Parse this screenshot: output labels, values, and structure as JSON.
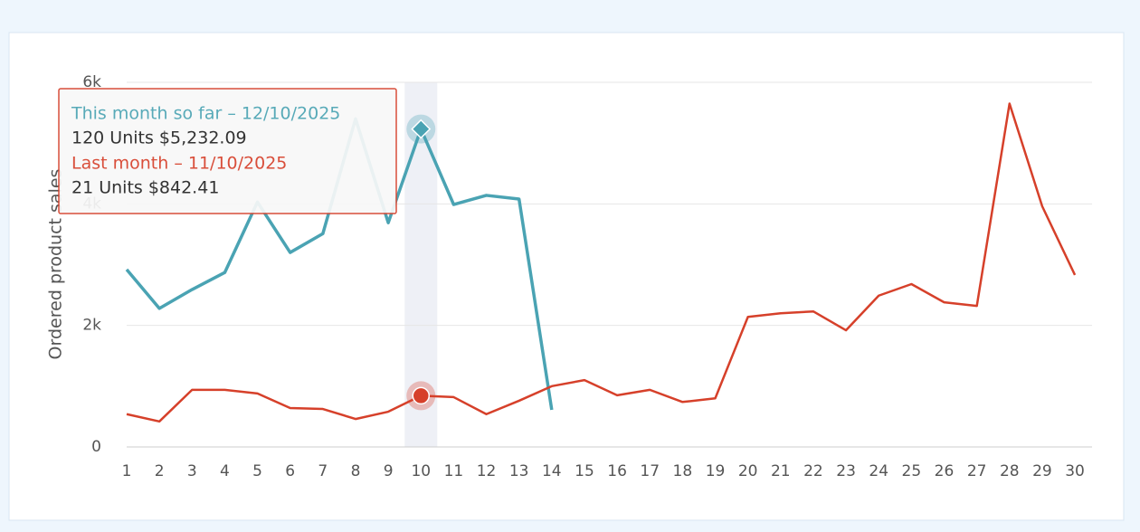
{
  "chart_data": {
    "type": "line",
    "y_label": "Ordered product sales",
    "categories": [
      "1",
      "2",
      "3",
      "4",
      "5",
      "6",
      "7",
      "8",
      "9",
      "10",
      "11",
      "12",
      "13",
      "14",
      "15",
      "16",
      "17",
      "18",
      "19",
      "20",
      "21",
      "22",
      "23",
      "24",
      "25",
      "26",
      "27",
      "28",
      "29",
      "30"
    ],
    "series": [
      {
        "color": "#4aa3b3",
        "values": [
          2920,
          2280,
          2590,
          2870,
          4030,
          3200,
          3510,
          5400,
          3690,
          5232.09,
          3990,
          4140,
          4080,
          610,
          null,
          null,
          null,
          null,
          null,
          null,
          null,
          null,
          null,
          null,
          null,
          null,
          null,
          null,
          null,
          null
        ]
      },
      {
        "color": "#d6402a",
        "values": [
          540,
          420,
          940,
          940,
          880,
          640,
          625,
          460,
          580,
          842.41,
          820,
          540,
          760,
          1000,
          1100,
          850,
          940,
          740,
          800,
          2140,
          2200,
          2230,
          1920,
          2490,
          2680,
          2380,
          2320,
          5650,
          3960,
          2830
        ]
      }
    ],
    "ylim": [
      0,
      6000
    ],
    "yticks": [
      0,
      {
        "value": 2000,
        "label": "2k"
      },
      {
        "value": 4000,
        "label": "4k"
      },
      {
        "value": 6000,
        "label": "6k"
      }
    ],
    "grid": true,
    "highlight_index": 9,
    "tooltip": [
      {
        "title": "This month so far – 12/10/2025",
        "detail": "120 Units $5,232.09"
      },
      {
        "title": "Last month – 11/10/2025",
        "detail": "21 Units $842.41"
      }
    ]
  }
}
